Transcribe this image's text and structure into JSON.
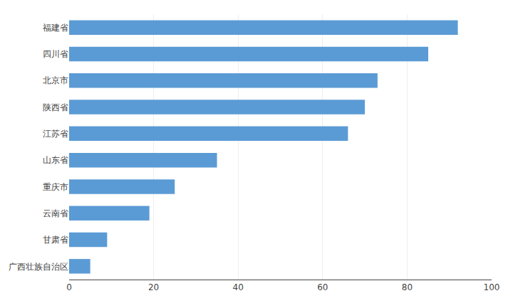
{
  "chart_data": {
    "type": "bar",
    "orientation": "horizontal",
    "categories": [
      "广西壮族自治区",
      "甘肃省",
      "云南省",
      "重庆市",
      "山东省",
      "江苏省",
      "陕西省",
      "北京市",
      "四川省",
      "福建省"
    ],
    "values": [
      5,
      9,
      19,
      25,
      35,
      66,
      70,
      73,
      85,
      92
    ],
    "color": "#5B9BD5",
    "xlim": [
      0,
      100
    ],
    "xticks": [
      0,
      20,
      40,
      60,
      80,
      100
    ],
    "grid": true
  }
}
